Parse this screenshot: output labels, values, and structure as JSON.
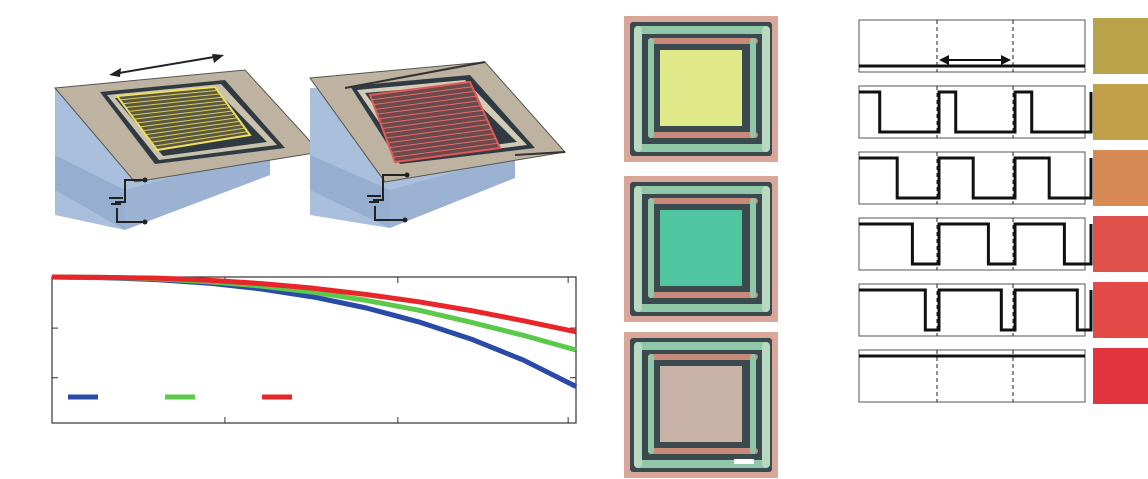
{
  "figure": {
    "device_schematic": {
      "left_device": {
        "state": "grating-aligned",
        "grating_color": "#f0e060"
      },
      "right_device": {
        "state": "grating-tilted",
        "grating_color": "#e05858"
      },
      "frame_color": "#bdb3a0",
      "substrate_color": "#9fb7d8"
    },
    "chart_panel": {
      "note": ""
    },
    "micrographs": [
      {
        "core_color": "#dfe98a"
      },
      {
        "core_color": "#4fc5a0"
      },
      {
        "core_color": "#c9b3a8"
      }
    ],
    "waveforms": {
      "rows": 6,
      "swatches": [
        "#b8a24a",
        "#c2a04a",
        "#d88a55",
        "#e0504a",
        "#e24a48",
        "#e2343c"
      ]
    }
  },
  "chart_data": {
    "type": "line",
    "title": "",
    "xlabel": "",
    "ylabel": "",
    "xlim": [
      0,
      1
    ],
    "ylim": [
      0.6,
      1.0
    ],
    "grid": false,
    "legend": "bottom-left",
    "series": [
      {
        "color": "#2a4aa8",
        "x": [
          0,
          0.1,
          0.2,
          0.3,
          0.4,
          0.5,
          0.6,
          0.7,
          0.8,
          0.9,
          1.0
        ],
        "values": [
          1.0,
          0.998,
          0.993,
          0.983,
          0.967,
          0.945,
          0.915,
          0.877,
          0.83,
          0.772,
          0.7
        ]
      },
      {
        "color": "#5cc94a",
        "x": [
          0,
          0.1,
          0.2,
          0.3,
          0.4,
          0.5,
          0.6,
          0.7,
          0.8,
          0.9,
          1.0
        ],
        "values": [
          1.0,
          0.999,
          0.995,
          0.987,
          0.975,
          0.958,
          0.936,
          0.909,
          0.876,
          0.84,
          0.8
        ]
      },
      {
        "color": "#e8262a",
        "x": [
          0,
          0.1,
          0.2,
          0.3,
          0.4,
          0.5,
          0.6,
          0.7,
          0.8,
          0.9,
          1.0
        ],
        "values": [
          1.0,
          0.999,
          0.997,
          0.991,
          0.982,
          0.969,
          0.952,
          0.932,
          0.908,
          0.88,
          0.85
        ]
      }
    ]
  }
}
